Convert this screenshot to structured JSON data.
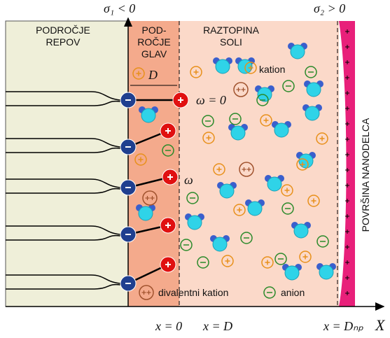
{
  "top_labels": {
    "sigma1": "σ₁ < 0",
    "sigma2": "σ₂ > 0"
  },
  "regions": {
    "tails": [
      "PODROČJE",
      "REPOV"
    ],
    "heads": [
      "POD-",
      "ROČJE",
      "GLAV"
    ],
    "solution": [
      "RAZTOPINA",
      "SOLI"
    ]
  },
  "annotations": {
    "thickness": "D",
    "omega_zero": "ω = 0",
    "omega": "ω"
  },
  "legend": {
    "cation": "kation",
    "divalent": "divalentni kation",
    "anion": "anion"
  },
  "surface": "POVRŠINA NANODELCA",
  "axis": {
    "x0": "x = 0",
    "xD": "x = D",
    "xDnp": "x = Dₙₚ",
    "x": "X"
  }
}
